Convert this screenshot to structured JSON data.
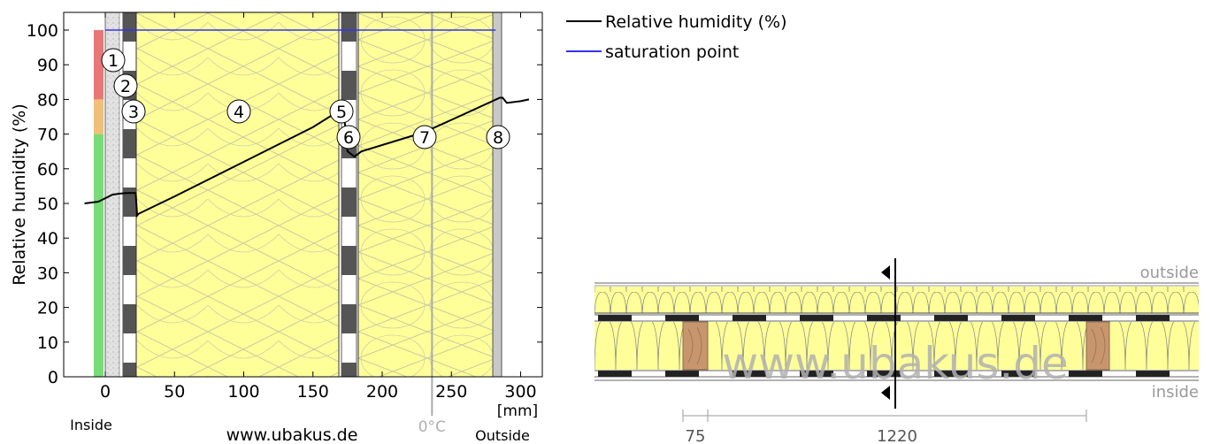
{
  "chart_data": {
    "type": "line",
    "ylabel": "Relative humidity (%)",
    "xunit": "[mm]",
    "xlim": [
      -15,
      310
    ],
    "ylim": [
      0,
      100
    ],
    "x_ticks": [
      "0",
      "50",
      "100",
      "150",
      "200",
      "250",
      "300"
    ],
    "y_ticks": [
      "0",
      "10",
      "20",
      "30",
      "40",
      "50",
      "60",
      "70",
      "80",
      "90",
      "100"
    ],
    "inside_label": "Inside",
    "outside_label": "Outside",
    "watermark": "www.ubakus.de",
    "zero_c_label": "0°C",
    "zero_c_x": 236,
    "series": [
      {
        "name": "Relative humidity (%)",
        "color": "#000000",
        "x": [
          -15,
          -5,
          0,
          5,
          10,
          15,
          22,
          23,
          24,
          50,
          100,
          150,
          172,
          175,
          180,
          185,
          230,
          255,
          285,
          287,
          290,
          300,
          306
        ],
        "y": [
          50,
          50.5,
          51.5,
          52.5,
          52.8,
          53,
          53,
          46.5,
          47,
          52,
          62,
          72,
          77.5,
          65,
          63.5,
          65,
          70.5,
          75,
          80.5,
          80.5,
          79,
          79.5,
          80
        ]
      },
      {
        "name": "saturation point",
        "color": "#3333ee",
        "x": [
          0,
          282
        ],
        "y": [
          100,
          100
        ]
      }
    ],
    "comfort_bar": [
      {
        "from": 0,
        "to": 70,
        "color": "#78dc78"
      },
      {
        "from": 70,
        "to": 80,
        "color": "#f0c078"
      },
      {
        "from": 80,
        "to": 100,
        "color": "#e87878"
      }
    ],
    "layer_labels": [
      "1",
      "2",
      "3",
      "4",
      "5",
      "6",
      "7",
      "8"
    ]
  },
  "section": {
    "outside_label": "outside",
    "inside_label": "inside",
    "watermark": "www.ubakus.de",
    "dim_small": "75",
    "dim_large": "1220"
  },
  "colors": {
    "insulation": "#ffff99",
    "wood": "#c8966e",
    "plaster": "#dcdcdc"
  }
}
